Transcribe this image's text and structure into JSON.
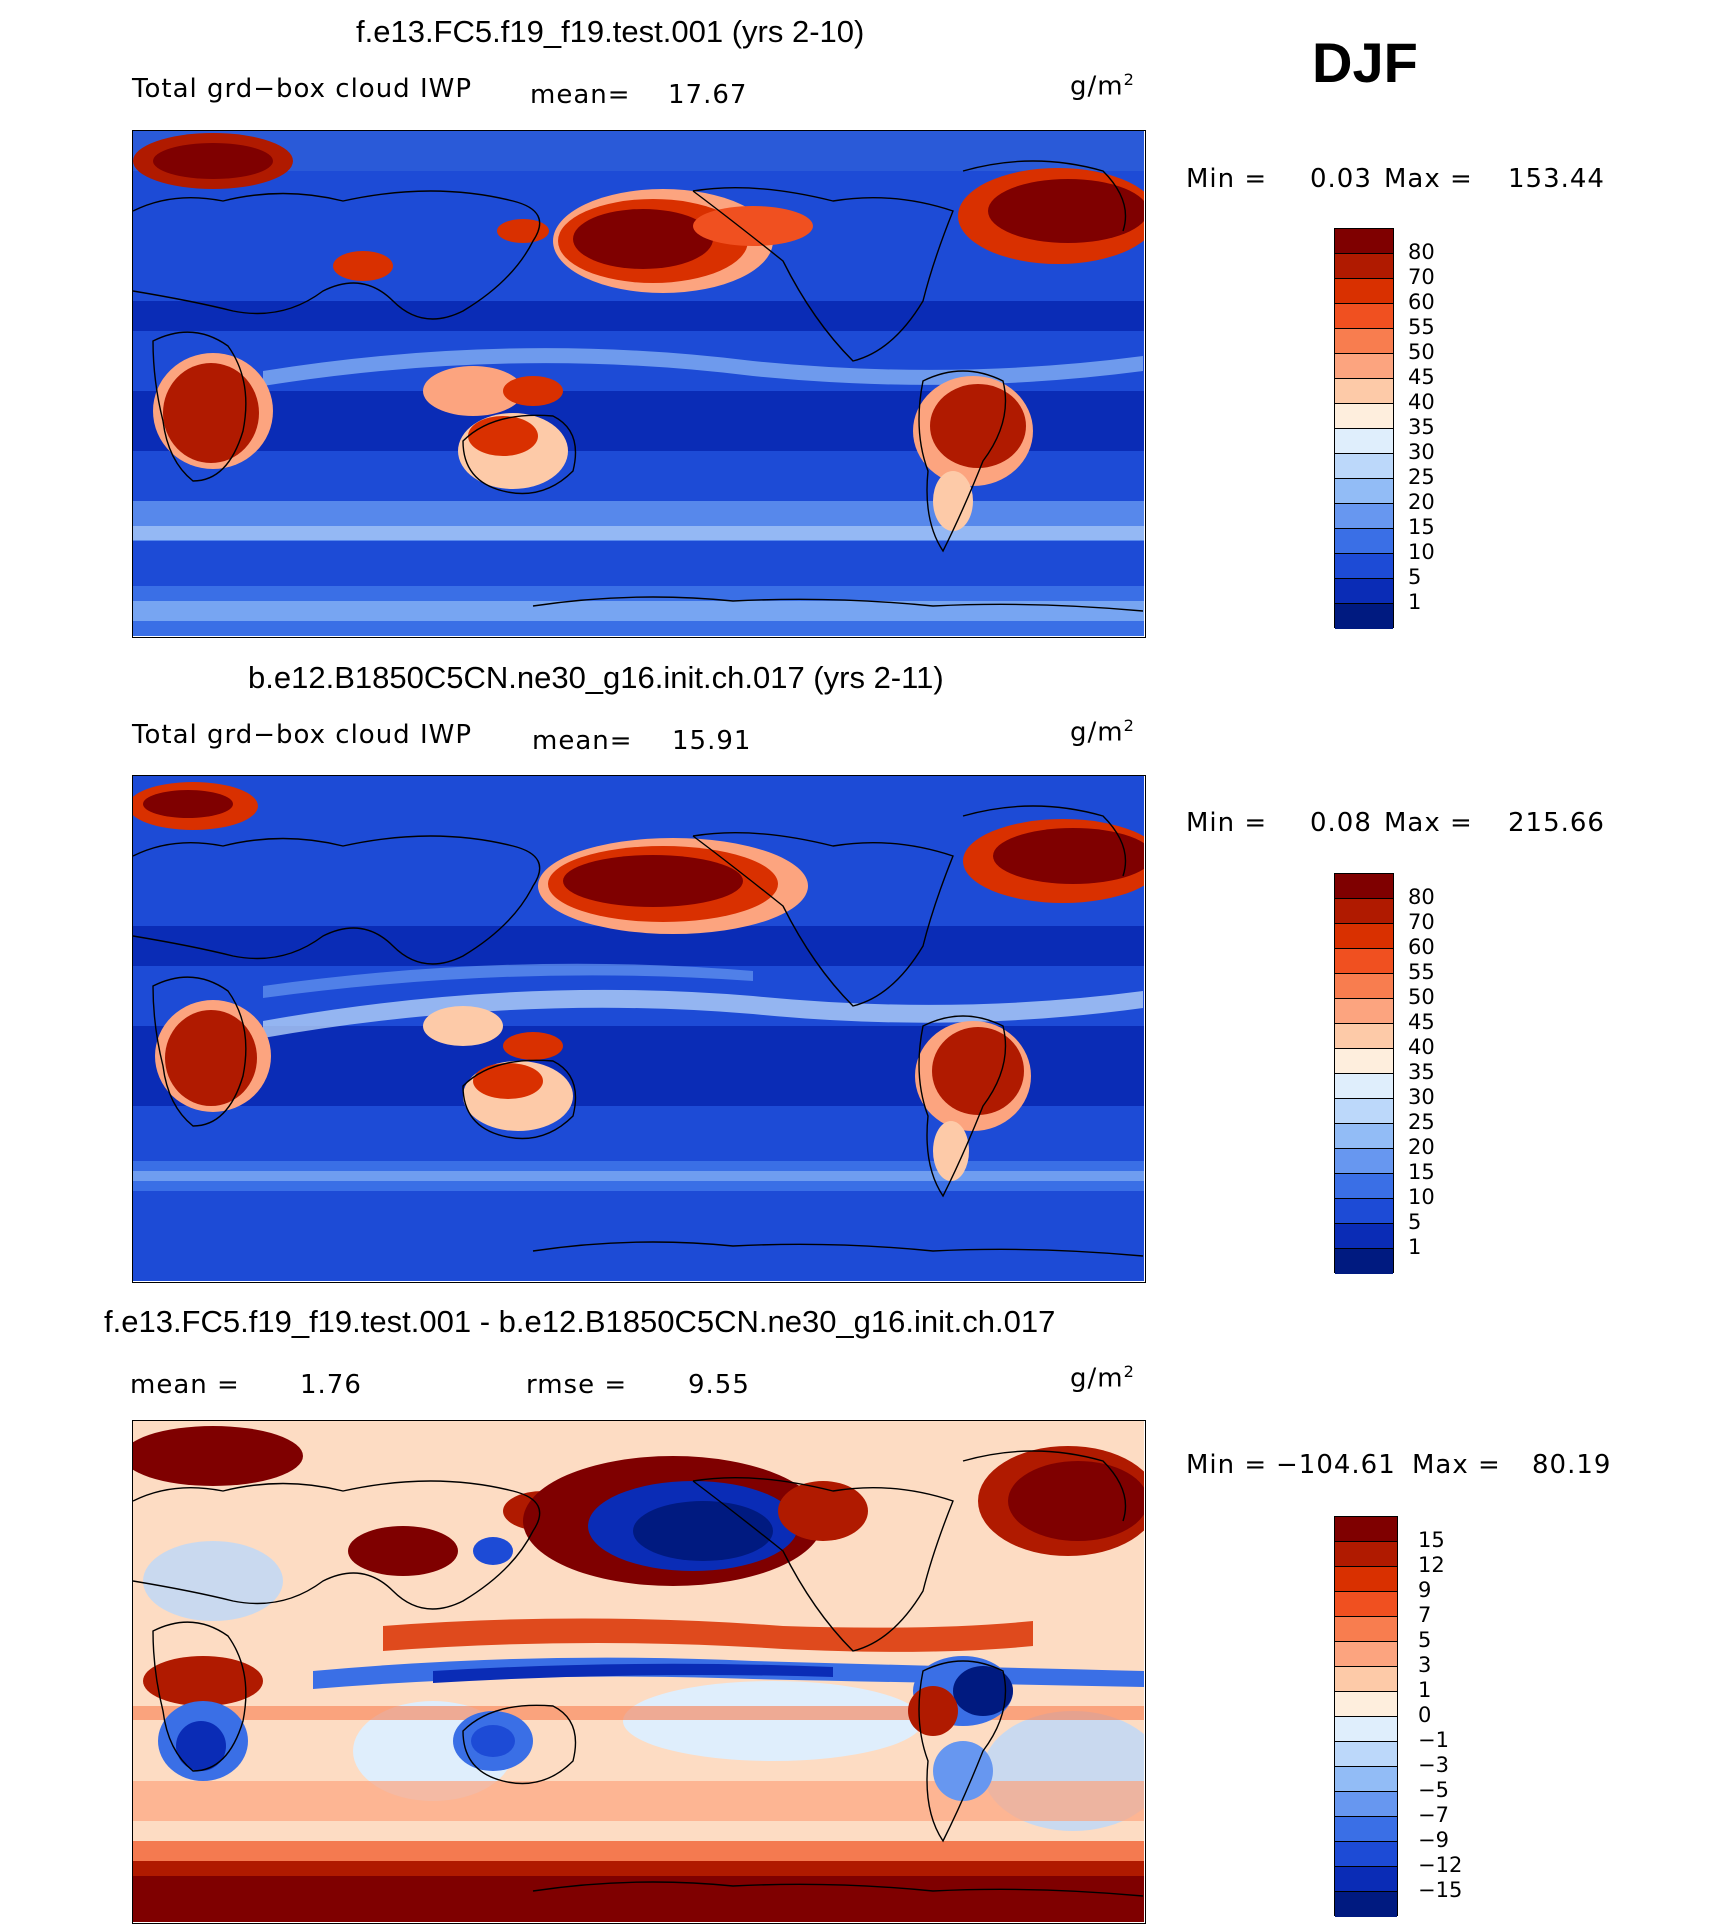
{
  "season": "DJF",
  "panels": [
    {
      "id": "top",
      "title": "f.e13.FC5.f19_f19.test.001 (yrs 2-10)",
      "left_label": "Total grd−box cloud IWP",
      "mean_label": "mean=",
      "mean_value": "17.67",
      "units_base": "g/m",
      "units_exp": "2",
      "min_label": "Min =",
      "min_value": "0.03",
      "max_label": "Max =",
      "max_value": "153.44",
      "colorbar_labels": [
        "80",
        "70",
        "60",
        "55",
        "50",
        "45",
        "40",
        "35",
        "30",
        "25",
        "20",
        "15",
        "10",
        "5",
        "1"
      ]
    },
    {
      "id": "middle",
      "title": "b.e12.B1850C5CN.ne30_g16.init.ch.017 (yrs 2-11)",
      "left_label": "Total grd−box cloud IWP",
      "mean_label": "mean=",
      "mean_value": "15.91",
      "units_base": "g/m",
      "units_exp": "2",
      "min_label": "Min =",
      "min_value": "0.08",
      "max_label": "Max =",
      "max_value": "215.66",
      "colorbar_labels": [
        "80",
        "70",
        "60",
        "55",
        "50",
        "45",
        "40",
        "35",
        "30",
        "25",
        "20",
        "15",
        "10",
        "5",
        "1"
      ]
    },
    {
      "id": "diff",
      "title": "f.e13.FC5.f19_f19.test.001 - b.e12.B1850C5CN.ne30_g16.init.ch.017",
      "mean_label": "mean =",
      "mean_value": "1.76",
      "rmse_label": "rmse =",
      "rmse_value": "9.55",
      "units_base": "g/m",
      "units_exp": "2",
      "min_label": "Min =",
      "min_value": "−104.61",
      "max_label": "Max =",
      "max_value": "80.19",
      "colorbar_labels": [
        "15",
        "12",
        "9",
        "7",
        "5",
        "3",
        "1",
        "0",
        "−1",
        "−3",
        "−5",
        "−7",
        "−9",
        "−12",
        "−15"
      ]
    }
  ],
  "colors": {
    "abs_scale": [
      "#7f0000",
      "#b01a00",
      "#d93000",
      "#f05020",
      "#f87d4f",
      "#fca47f",
      "#fdcaa8",
      "#feeedd",
      "#dfeefc",
      "#bcd8fa",
      "#92bcf6",
      "#6797f0",
      "#3a6fe6",
      "#1d4bd6",
      "#0a2cb6",
      "#001a80"
    ],
    "diff_scale": [
      "#7f0000",
      "#b01a00",
      "#d93000",
      "#f05020",
      "#f87d4f",
      "#fca47f",
      "#fdcaa8",
      "#feeedd",
      "#dfeefc",
      "#bcd8fa",
      "#92bcf6",
      "#6797f0",
      "#3a6fe6",
      "#1d4bd6",
      "#0a2cb6",
      "#001a80"
    ]
  }
}
